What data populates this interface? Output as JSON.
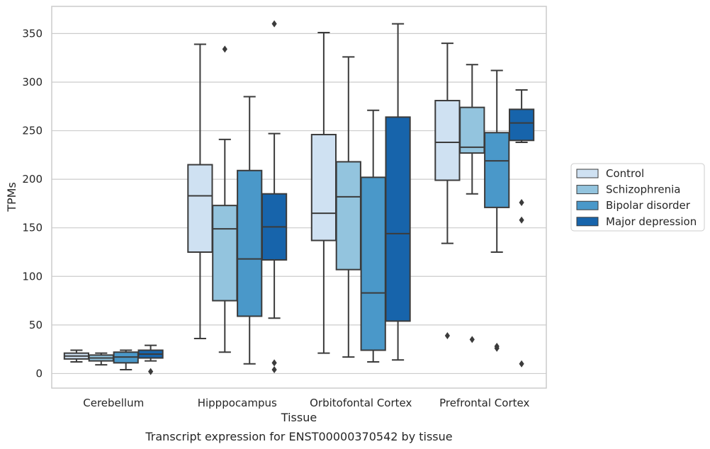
{
  "chart_data": {
    "type": "boxplot",
    "title": "",
    "caption": "Transcript expression for ENST00000370542 by tissue",
    "xlabel": "Tissue",
    "ylabel": "TPMs",
    "ylim": [
      -15,
      378
    ],
    "yticks": [
      0,
      50,
      100,
      150,
      200,
      250,
      300,
      350
    ],
    "grid": "horizontal",
    "legend_position": "right",
    "categories": [
      "Cerebellum",
      "Hipppocampus",
      "Orbitofontal Cortex",
      "Prefrontal Cortex"
    ],
    "colors": {
      "Control": "#cfe1f2",
      "Schizophrenia": "#93c4de",
      "Bipolar disorder": "#4a98c9",
      "Major depression": "#1764ab",
      "box_edge": "#3b3b3b",
      "grid": "#cccccc",
      "frame": "#cccccc",
      "text": "#262626"
    },
    "series": [
      {
        "name": "Control",
        "boxes": [
          {
            "whislo": 12,
            "q1": 15,
            "med": 18,
            "q3": 21,
            "whishi": 24,
            "fliers": []
          },
          {
            "whislo": 36,
            "q1": 125,
            "med": 183,
            "q3": 215,
            "whishi": 339,
            "fliers": []
          },
          {
            "whislo": 21,
            "q1": 137,
            "med": 165,
            "q3": 246,
            "whishi": 351,
            "fliers": []
          },
          {
            "whislo": 134,
            "q1": 199,
            "med": 238,
            "q3": 281,
            "whishi": 340,
            "fliers": [
              39
            ]
          }
        ]
      },
      {
        "name": "Schizophrenia",
        "boxes": [
          {
            "whislo": 9,
            "q1": 13,
            "med": 16,
            "q3": 19,
            "whishi": 21,
            "fliers": []
          },
          {
            "whislo": 22,
            "q1": 75,
            "med": 149,
            "q3": 173,
            "whishi": 241,
            "fliers": [
              334
            ]
          },
          {
            "whislo": 17,
            "q1": 107,
            "med": 182,
            "q3": 218,
            "whishi": 326,
            "fliers": []
          },
          {
            "whislo": 185,
            "q1": 227,
            "med": 233,
            "q3": 274,
            "whishi": 318,
            "fliers": [
              35
            ]
          }
        ]
      },
      {
        "name": "Bipolar disorder",
        "boxes": [
          {
            "whislo": 4,
            "q1": 11,
            "med": 17,
            "q3": 22,
            "whishi": 24,
            "fliers": []
          },
          {
            "whislo": 10,
            "q1": 59,
            "med": 118,
            "q3": 209,
            "whishi": 285,
            "fliers": []
          },
          {
            "whislo": 12,
            "q1": 24,
            "med": 83,
            "q3": 202,
            "whishi": 271,
            "fliers": []
          },
          {
            "whislo": 125,
            "q1": 171,
            "med": 219,
            "q3": 248,
            "whishi": 312,
            "fliers": [
              28,
              26
            ]
          }
        ]
      },
      {
        "name": "Major depression",
        "boxes": [
          {
            "whislo": 13,
            "q1": 16,
            "med": 20,
            "q3": 24,
            "whishi": 29,
            "fliers": [
              2
            ]
          },
          {
            "whislo": 57,
            "q1": 117,
            "med": 151,
            "q3": 185,
            "whishi": 247,
            "fliers": [
              360,
              11,
              4
            ]
          },
          {
            "whislo": 14,
            "q1": 54,
            "med": 144,
            "q3": 264,
            "whishi": 360,
            "fliers": []
          },
          {
            "whislo": 238,
            "q1": 240,
            "med": 258,
            "q3": 272,
            "whishi": 292,
            "fliers": [
              176,
              158,
              10
            ]
          }
        ]
      }
    ]
  }
}
